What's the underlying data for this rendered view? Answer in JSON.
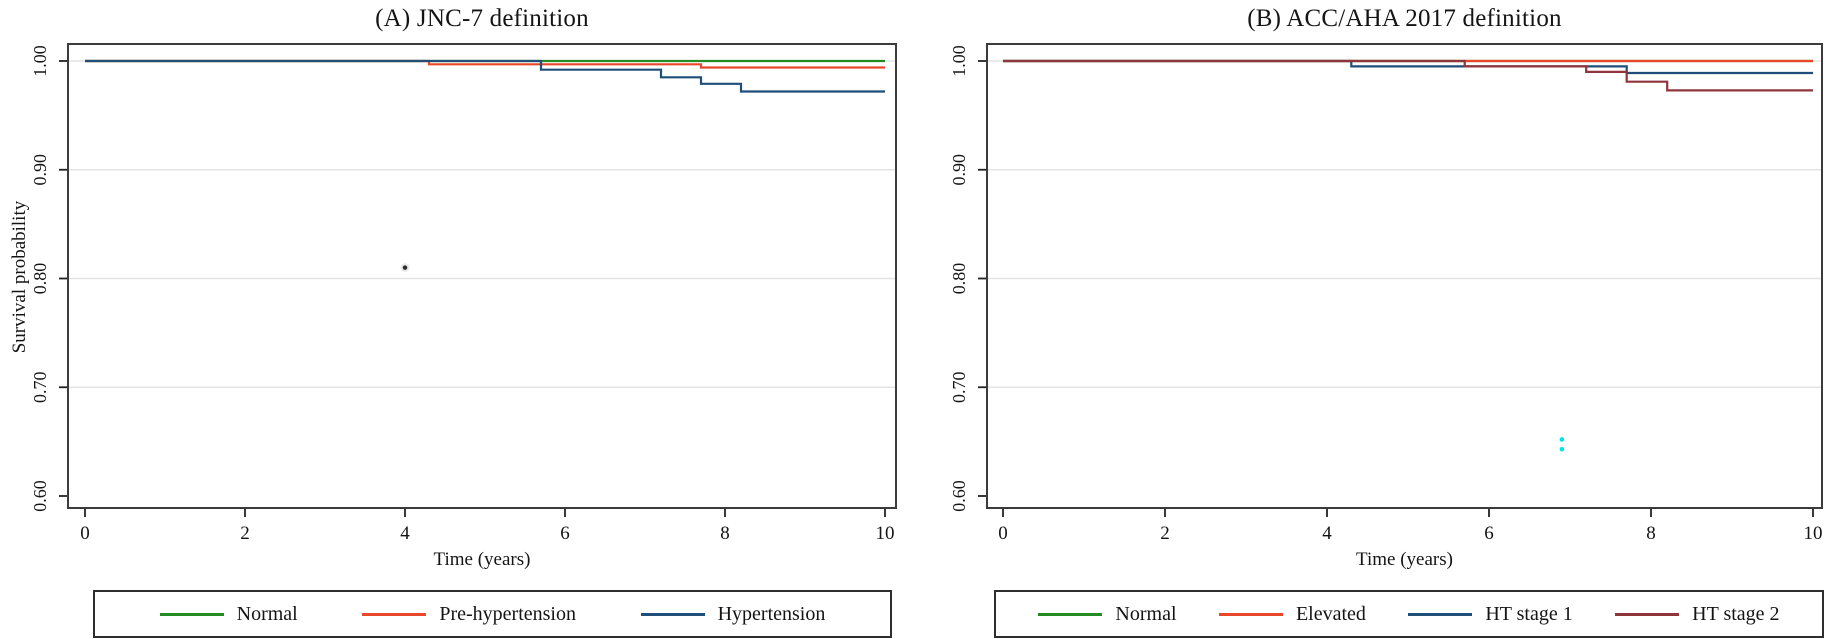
{
  "page": {
    "background": "#ffffff"
  },
  "style": {
    "frame_color": "#3c3c3c",
    "grid_color": "#e3e3e3",
    "tick_color": "#222222",
    "text_color": "#141414",
    "legend_border_color": "#2e2e2e"
  },
  "chart_data": [
    {
      "type": "line",
      "variant": "kaplan-meier-step",
      "title": "(A) JNC-7 definition",
      "xlabel": "Time (years)",
      "ylabel": "Survival probability",
      "xlim": [
        0,
        10
      ],
      "ylim": [
        0.6,
        1.0
      ],
      "xticks": [
        "0",
        "2",
        "4",
        "6",
        "8",
        "10"
      ],
      "xtick_values": [
        0,
        2,
        4,
        6,
        8,
        10
      ],
      "yticks": [
        "1.00",
        "0.90",
        "0.80",
        "0.70",
        "0.60"
      ],
      "ytick_values": [
        1.0,
        0.9,
        0.8,
        0.7,
        0.6
      ],
      "grid": "horizontal light gray at 0.70, 0.80, 0.90, 1.00",
      "legend_position": "bottom boxed",
      "series": [
        {
          "name": "Normal",
          "color": "#228b22",
          "points": [
            [
              0,
              1.0
            ],
            [
              10,
              1.0
            ]
          ]
        },
        {
          "name": "Pre-hypertension",
          "color": "#e8472a",
          "points": [
            [
              0,
              1.0
            ],
            [
              4.3,
              1.0
            ],
            [
              4.3,
              0.997
            ],
            [
              7.7,
              0.997
            ],
            [
              7.7,
              0.994
            ],
            [
              10,
              0.994
            ]
          ]
        },
        {
          "name": "Hypertension",
          "color": "#1f4e79",
          "points": [
            [
              0,
              1.0
            ],
            [
              5.7,
              1.0
            ],
            [
              5.7,
              0.992
            ],
            [
              7.2,
              0.992
            ],
            [
              7.2,
              0.985
            ],
            [
              7.7,
              0.985
            ],
            [
              7.7,
              0.979
            ],
            [
              8.2,
              0.979
            ],
            [
              8.2,
              0.972
            ],
            [
              10,
              0.972
            ]
          ]
        }
      ],
      "artifacts": [
        {
          "shape": "dot",
          "year": 4.0,
          "prob": 0.81,
          "color": "#2f2f2f",
          "halo": "#ebebeb"
        }
      ]
    },
    {
      "type": "line",
      "variant": "kaplan-meier-step",
      "title": "(B) ACC/AHA 2017 definition",
      "xlabel": "Time (years)",
      "ylabel": "",
      "xlim": [
        0,
        10
      ],
      "ylim": [
        0.6,
        1.0
      ],
      "xticks": [
        "0",
        "2",
        "4",
        "6",
        "8",
        "10"
      ],
      "xtick_values": [
        0,
        2,
        4,
        6,
        8,
        10
      ],
      "yticks": [
        "1.00",
        "0.90",
        "0.80",
        "0.70",
        "0.60"
      ],
      "ytick_values": [
        1.0,
        0.9,
        0.8,
        0.7,
        0.6
      ],
      "grid": "horizontal light gray at 0.70, 0.80, 0.90, 1.00",
      "legend_position": "bottom boxed",
      "series": [
        {
          "name": "Normal",
          "color": "#228b22",
          "points": [
            [
              0,
              1.0
            ],
            [
              10,
              1.0
            ]
          ]
        },
        {
          "name": "Elevated",
          "color": "#e8472a",
          "points": [
            [
              0,
              1.0
            ],
            [
              10,
              1.0
            ]
          ]
        },
        {
          "name": "HT stage 1",
          "color": "#1f4e79",
          "points": [
            [
              0,
              1.0
            ],
            [
              4.3,
              1.0
            ],
            [
              4.3,
              0.995
            ],
            [
              7.7,
              0.995
            ],
            [
              7.7,
              0.989
            ],
            [
              10,
              0.989
            ]
          ]
        },
        {
          "name": "HT stage 2",
          "color": "#90353b",
          "points": [
            [
              0,
              1.0
            ],
            [
              5.7,
              1.0
            ],
            [
              5.7,
              0.995
            ],
            [
              7.2,
              0.995
            ],
            [
              7.2,
              0.99
            ],
            [
              7.7,
              0.99
            ],
            [
              7.7,
              0.981
            ],
            [
              8.2,
              0.981
            ],
            [
              8.2,
              0.973
            ],
            [
              10,
              0.973
            ]
          ]
        }
      ],
      "artifacts": [
        {
          "shape": "dot",
          "year": 6.9,
          "prob": 0.652,
          "color": "#00e6e6"
        },
        {
          "shape": "dot",
          "year": 6.9,
          "prob": 0.643,
          "color": "#00e6e6"
        }
      ]
    }
  ]
}
